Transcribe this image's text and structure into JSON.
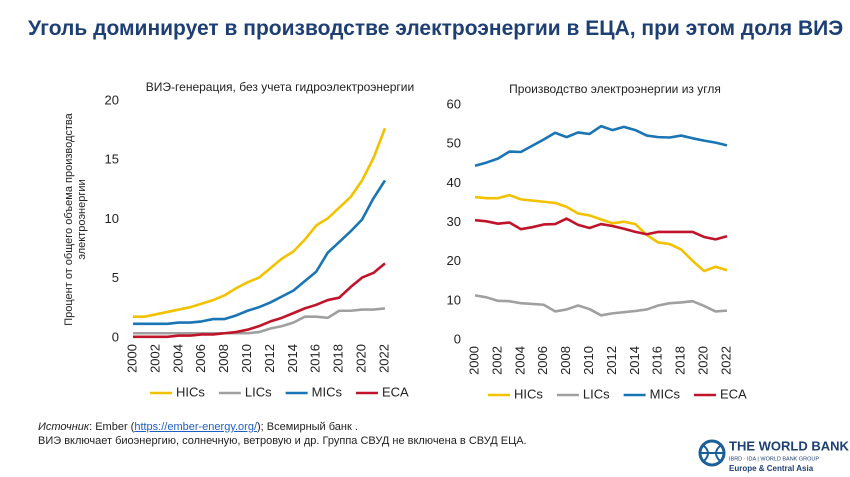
{
  "title": "Уголь доминирует в производстве электроэнергии в ЕЦА, при этом доля ВИЭ низкая",
  "chart_data": [
    {
      "type": "line",
      "title": "ВИЭ-генерация, без учета гидроэлектроэнергии",
      "ylabel": [
        "Процент от общего объема производства",
        "электроэнергии"
      ],
      "x": [
        2000,
        2001,
        2002,
        2003,
        2004,
        2005,
        2006,
        2007,
        2008,
        2009,
        2010,
        2011,
        2012,
        2013,
        2014,
        2015,
        2016,
        2017,
        2018,
        2019,
        2020,
        2021,
        2022
      ],
      "xlim": [
        2000,
        2022
      ],
      "xticks": [
        2000,
        2002,
        2004,
        2006,
        2008,
        2010,
        2012,
        2014,
        2016,
        2018,
        2020,
        2022
      ],
      "ylim": [
        0,
        20
      ],
      "yticks": [
        0,
        5,
        10,
        15,
        20
      ],
      "grid": false,
      "legend": "bottom",
      "series": [
        {
          "name": "HICs",
          "color": "#f2c200",
          "values": [
            1.8,
            1.8,
            2.0,
            2.2,
            2.4,
            2.6,
            2.9,
            3.2,
            3.6,
            4.2,
            4.7,
            5.1,
            5.9,
            6.7,
            7.3,
            8.3,
            9.5,
            10.1,
            11.0,
            11.9,
            13.3,
            15.2,
            17.7
          ]
        },
        {
          "name": "LICs",
          "color": "#a0a0a0",
          "values": [
            0.4,
            0.4,
            0.4,
            0.4,
            0.4,
            0.4,
            0.4,
            0.4,
            0.4,
            0.4,
            0.4,
            0.5,
            0.8,
            1.0,
            1.3,
            1.8,
            1.8,
            1.7,
            2.3,
            2.3,
            2.4,
            2.4,
            2.5
          ]
        },
        {
          "name": "MICs",
          "color": "#1a75b4",
          "values": [
            1.2,
            1.2,
            1.2,
            1.2,
            1.3,
            1.3,
            1.4,
            1.6,
            1.6,
            1.9,
            2.3,
            2.6,
            3.0,
            3.5,
            4.0,
            4.8,
            5.6,
            7.2,
            8.1,
            9.0,
            10.0,
            11.8,
            13.3
          ]
        },
        {
          "name": "ECA",
          "color": "#c0142a",
          "values": [
            0.1,
            0.1,
            0.1,
            0.1,
            0.2,
            0.2,
            0.3,
            0.3,
            0.4,
            0.5,
            0.7,
            1.0,
            1.4,
            1.7,
            2.1,
            2.5,
            2.8,
            3.2,
            3.4,
            4.3,
            5.1,
            5.5,
            6.3
          ]
        }
      ]
    },
    {
      "type": "line",
      "title": "Производство электроэнергии из угля",
      "x": [
        2000,
        2001,
        2002,
        2003,
        2004,
        2005,
        2006,
        2007,
        2008,
        2009,
        2010,
        2011,
        2012,
        2013,
        2014,
        2015,
        2016,
        2017,
        2018,
        2019,
        2020,
        2021,
        2022
      ],
      "xlim": [
        2000,
        2022
      ],
      "xticks": [
        2000,
        2002,
        2004,
        2006,
        2008,
        2010,
        2012,
        2014,
        2016,
        2018,
        2020,
        2022
      ],
      "ylim": [
        0,
        60
      ],
      "yticks": [
        0,
        10,
        20,
        30,
        40,
        50,
        60
      ],
      "grid": false,
      "legend": "bottom",
      "series": [
        {
          "name": "HICs",
          "color": "#f2c200",
          "values": [
            36.5,
            36.2,
            36.2,
            37.0,
            35.9,
            35.6,
            35.3,
            35.0,
            34.0,
            32.3,
            31.8,
            30.8,
            29.8,
            30.2,
            29.6,
            26.8,
            24.9,
            24.5,
            23.1,
            20.2,
            17.6,
            18.7,
            17.8
          ]
        },
        {
          "name": "LICs",
          "color": "#a0a0a0",
          "values": [
            11.4,
            10.9,
            10.0,
            9.9,
            9.4,
            9.2,
            9.0,
            7.3,
            7.8,
            8.8,
            7.9,
            6.3,
            6.8,
            7.1,
            7.4,
            7.8,
            8.8,
            9.4,
            9.6,
            9.9,
            8.7,
            7.3,
            7.5
          ]
        },
        {
          "name": "MICs",
          "color": "#1a75b4",
          "values": [
            44.5,
            45.3,
            46.3,
            48.1,
            48.0,
            49.6,
            51.2,
            52.9,
            51.8,
            53.0,
            52.6,
            54.6,
            53.6,
            54.4,
            53.6,
            52.2,
            51.8,
            51.7,
            52.2,
            51.5,
            50.9,
            50.4,
            49.7
          ]
        },
        {
          "name": "ECA",
          "color": "#c0142a",
          "values": [
            30.6,
            30.3,
            29.7,
            30.0,
            28.3,
            28.8,
            29.5,
            29.6,
            31.0,
            29.4,
            28.6,
            29.6,
            29.1,
            28.4,
            27.6,
            27.0,
            27.6,
            27.6,
            27.6,
            27.6,
            26.3,
            25.7,
            26.5
          ]
        }
      ]
    }
  ],
  "footer": {
    "source": [
      "Источник",
      ": Ember (",
      "https://ember-energy.org/",
      "); Всемирный банк ."
    ],
    "note": "ВИЭ включает биоэнергию, солнечную, ветровую и др. Группа СВУД не включена в СВУД ЕЦА."
  },
  "logo": {
    "name": "THE WORLD BANK",
    "group": "IBRD · IDA | WORLD BANK GROUP",
    "region": "Europe & Central Asia"
  }
}
